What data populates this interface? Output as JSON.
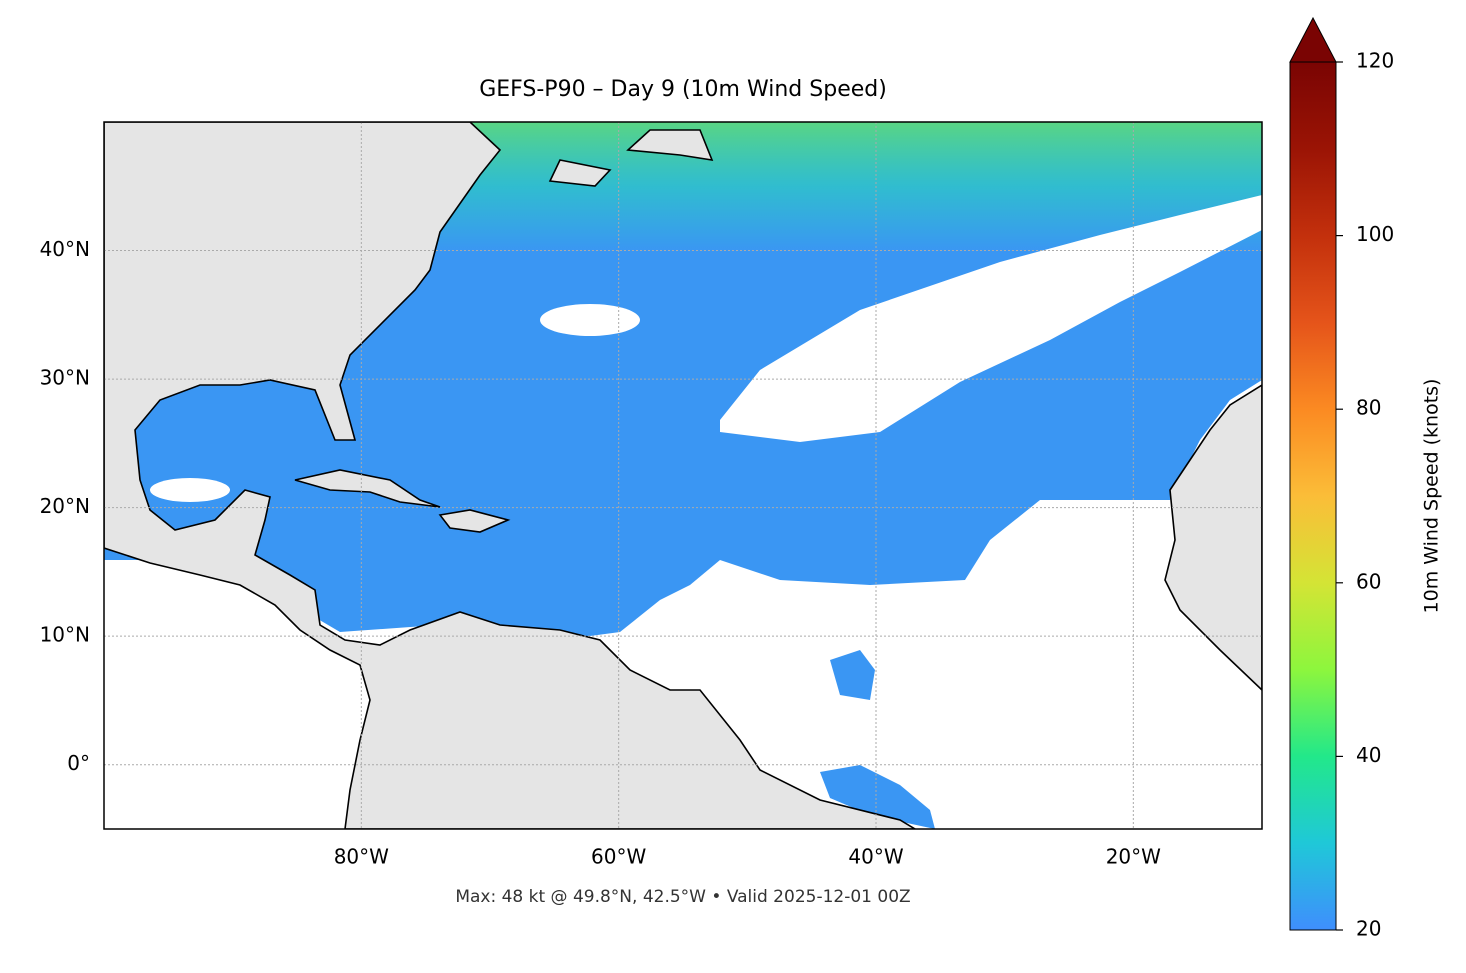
{
  "chart_data": {
    "type": "map",
    "title": "GEFS-P90 – Day 9 (10m Wind Speed)",
    "note": "Max: 48 kt @ 49.8°N, 42.5°W • Valid 2025-12-01 00Z",
    "xlim": [
      -100,
      -10
    ],
    "ylim": [
      -5,
      50
    ],
    "xticks": [
      {
        "value": -80,
        "label": "80°W"
      },
      {
        "value": -60,
        "label": "60°W"
      },
      {
        "value": -40,
        "label": "40°W"
      },
      {
        "value": -20,
        "label": "20°W"
      }
    ],
    "yticks": [
      {
        "value": 0,
        "label": "0°"
      },
      {
        "value": 10,
        "label": "10°N"
      },
      {
        "value": 20,
        "label": "20°N"
      },
      {
        "value": 30,
        "label": "30°N"
      },
      {
        "value": 40,
        "label": "40°N"
      }
    ],
    "grid": true,
    "colorbar": {
      "label": "10m Wind Speed (knots)",
      "lim": [
        20,
        120
      ],
      "ticks": [
        20,
        40,
        60,
        80,
        100,
        120
      ],
      "colors": [
        "#3f8efd",
        "#1fc8d8",
        "#22e88a",
        "#8df63d",
        "#d4e435",
        "#fbbd38",
        "#fb8a22",
        "#e5541a",
        "#c3300c",
        "#9b1405",
        "#7a0403"
      ],
      "extend_color": "#7a0403"
    }
  }
}
